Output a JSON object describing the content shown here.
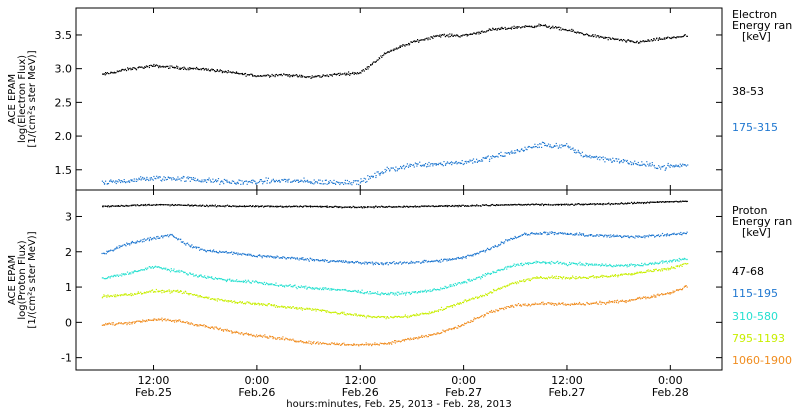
{
  "chart_data": [
    {
      "type": "scatter",
      "panel": "electron",
      "ylabel_lines": [
        "ACE EPAM",
        "log(Electron Flux)",
        "[1/(cm²s ster MeV)]"
      ],
      "ylim": [
        1.2,
        3.9
      ],
      "yticks": [
        1.5,
        2.0,
        2.5,
        3.0,
        3.5
      ],
      "ytick_labels": [
        "1.5",
        "2.0",
        "2.5",
        "3.0",
        "3.5"
      ],
      "legend_title": [
        "Electron",
        "Energy ran",
        "[keV]"
      ],
      "series": [
        {
          "name": "38-53",
          "color": "#000000",
          "points": [
            [
              -12,
              2.92
            ],
            [
              -6,
              3.0
            ],
            [
              0,
              3.05
            ],
            [
              6,
              3.02
            ],
            [
              12,
              3.0
            ],
            [
              18,
              2.95
            ],
            [
              24,
              2.9
            ],
            [
              30,
              2.92
            ],
            [
              36,
              2.88
            ],
            [
              42,
              2.92
            ],
            [
              48,
              2.95
            ],
            [
              54,
              3.25
            ],
            [
              60,
              3.4
            ],
            [
              66,
              3.5
            ],
            [
              72,
              3.5
            ],
            [
              78,
              3.58
            ],
            [
              84,
              3.62
            ],
            [
              90,
              3.65
            ],
            [
              96,
              3.58
            ],
            [
              100,
              3.52
            ],
            [
              106,
              3.45
            ],
            [
              112,
              3.4
            ],
            [
              118,
              3.45
            ],
            [
              124,
              3.5
            ]
          ]
        },
        {
          "name": "175-315",
          "color": "#1f77d0",
          "points": [
            [
              -12,
              1.3
            ],
            [
              -6,
              1.35
            ],
            [
              0,
              1.38
            ],
            [
              6,
              1.38
            ],
            [
              12,
              1.35
            ],
            [
              18,
              1.32
            ],
            [
              24,
              1.33
            ],
            [
              30,
              1.35
            ],
            [
              36,
              1.33
            ],
            [
              42,
              1.32
            ],
            [
              48,
              1.33
            ],
            [
              54,
              1.5
            ],
            [
              60,
              1.58
            ],
            [
              66,
              1.6
            ],
            [
              72,
              1.62
            ],
            [
              78,
              1.68
            ],
            [
              84,
              1.78
            ],
            [
              90,
              1.88
            ],
            [
              96,
              1.85
            ],
            [
              100,
              1.72
            ],
            [
              106,
              1.66
            ],
            [
              112,
              1.6
            ],
            [
              118,
              1.55
            ],
            [
              124,
              1.58
            ]
          ]
        }
      ]
    },
    {
      "type": "scatter",
      "panel": "proton",
      "ylabel_lines": [
        "ACE EPAM",
        "log(Proton Flux)",
        "[1/(cm²s ster MeV)]"
      ],
      "ylim": [
        -1.35,
        3.75
      ],
      "yticks": [
        -1,
        0,
        1,
        2,
        3
      ],
      "ytick_labels": [
        "-1",
        "0",
        "1",
        "2",
        "3"
      ],
      "legend_title": [
        "Proton",
        "Energy ran",
        "[keV]"
      ],
      "series": [
        {
          "name": "47-68",
          "color": "#000000",
          "points": [
            [
              -12,
              3.3
            ],
            [
              0,
              3.35
            ],
            [
              12,
              3.32
            ],
            [
              24,
              3.3
            ],
            [
              36,
              3.3
            ],
            [
              48,
              3.28
            ],
            [
              60,
              3.3
            ],
            [
              72,
              3.32
            ],
            [
              84,
              3.35
            ],
            [
              96,
              3.35
            ],
            [
              108,
              3.38
            ],
            [
              124,
              3.45
            ]
          ]
        },
        {
          "name": "115-195",
          "color": "#1f77d0",
          "points": [
            [
              -12,
              1.95
            ],
            [
              -6,
              2.25
            ],
            [
              0,
              2.4
            ],
            [
              4,
              2.5
            ],
            [
              8,
              2.2
            ],
            [
              12,
              2.05
            ],
            [
              18,
              1.98
            ],
            [
              24,
              1.9
            ],
            [
              30,
              1.85
            ],
            [
              36,
              1.8
            ],
            [
              42,
              1.75
            ],
            [
              48,
              1.7
            ],
            [
              54,
              1.68
            ],
            [
              60,
              1.72
            ],
            [
              66,
              1.75
            ],
            [
              72,
              1.85
            ],
            [
              78,
              2.1
            ],
            [
              82,
              2.35
            ],
            [
              86,
              2.5
            ],
            [
              90,
              2.55
            ],
            [
              96,
              2.52
            ],
            [
              102,
              2.48
            ],
            [
              108,
              2.45
            ],
            [
              114,
              2.45
            ],
            [
              120,
              2.5
            ],
            [
              124,
              2.55
            ]
          ]
        },
        {
          "name": "310-580",
          "color": "#26e0d0",
          "points": [
            [
              -12,
              1.25
            ],
            [
              -6,
              1.4
            ],
            [
              0,
              1.6
            ],
            [
              6,
              1.45
            ],
            [
              12,
              1.3
            ],
            [
              18,
              1.2
            ],
            [
              24,
              1.15
            ],
            [
              30,
              1.05
            ],
            [
              36,
              1.0
            ],
            [
              42,
              0.95
            ],
            [
              48,
              0.88
            ],
            [
              54,
              0.82
            ],
            [
              60,
              0.85
            ],
            [
              66,
              0.95
            ],
            [
              72,
              1.15
            ],
            [
              78,
              1.4
            ],
            [
              84,
              1.65
            ],
            [
              90,
              1.72
            ],
            [
              96,
              1.68
            ],
            [
              102,
              1.65
            ],
            [
              108,
              1.62
            ],
            [
              114,
              1.65
            ],
            [
              120,
              1.75
            ],
            [
              124,
              1.82
            ]
          ]
        },
        {
          "name": "795-1193",
          "color": "#c8ee00",
          "points": [
            [
              -12,
              0.75
            ],
            [
              -6,
              0.8
            ],
            [
              0,
              0.9
            ],
            [
              6,
              0.88
            ],
            [
              12,
              0.72
            ],
            [
              18,
              0.6
            ],
            [
              24,
              0.55
            ],
            [
              30,
              0.45
            ],
            [
              36,
              0.4
            ],
            [
              42,
              0.3
            ],
            [
              48,
              0.2
            ],
            [
              54,
              0.15
            ],
            [
              60,
              0.2
            ],
            [
              66,
              0.35
            ],
            [
              72,
              0.6
            ],
            [
              78,
              0.85
            ],
            [
              84,
              1.15
            ],
            [
              90,
              1.3
            ],
            [
              96,
              1.28
            ],
            [
              102,
              1.3
            ],
            [
              108,
              1.35
            ],
            [
              114,
              1.45
            ],
            [
              120,
              1.55
            ],
            [
              124,
              1.7
            ]
          ]
        },
        {
          "name": "1060-1900",
          "color": "#f08c1e",
          "points": [
            [
              -12,
              -0.05
            ],
            [
              -6,
              0.0
            ],
            [
              0,
              0.1
            ],
            [
              6,
              0.05
            ],
            [
              12,
              -0.1
            ],
            [
              18,
              -0.25
            ],
            [
              24,
              -0.35
            ],
            [
              30,
              -0.45
            ],
            [
              36,
              -0.55
            ],
            [
              42,
              -0.6
            ],
            [
              48,
              -0.62
            ],
            [
              54,
              -0.58
            ],
            [
              60,
              -0.45
            ],
            [
              66,
              -0.3
            ],
            [
              72,
              -0.05
            ],
            [
              78,
              0.3
            ],
            [
              84,
              0.5
            ],
            [
              90,
              0.55
            ],
            [
              96,
              0.52
            ],
            [
              102,
              0.55
            ],
            [
              108,
              0.6
            ],
            [
              114,
              0.72
            ],
            [
              120,
              0.85
            ],
            [
              124,
              1.05
            ]
          ]
        }
      ]
    }
  ],
  "x_axis": {
    "xlim": [
      -18,
      132
    ],
    "ticks": [
      {
        "x": 0,
        "time": "12:00",
        "date": "Feb.25"
      },
      {
        "x": 24,
        "time": "0:00",
        "date": "Feb.26"
      },
      {
        "x": 48,
        "time": "12:00",
        "date": "Feb.26"
      },
      {
        "x": 72,
        "time": "0:00",
        "date": "Feb.27"
      },
      {
        "x": 96,
        "time": "12:00",
        "date": "Feb.27"
      },
      {
        "x": 120,
        "time": "0:00",
        "date": "Feb.28"
      }
    ],
    "xlabel": "hours:minutes, Feb. 25, 2013 - Feb. 28, 2013"
  }
}
